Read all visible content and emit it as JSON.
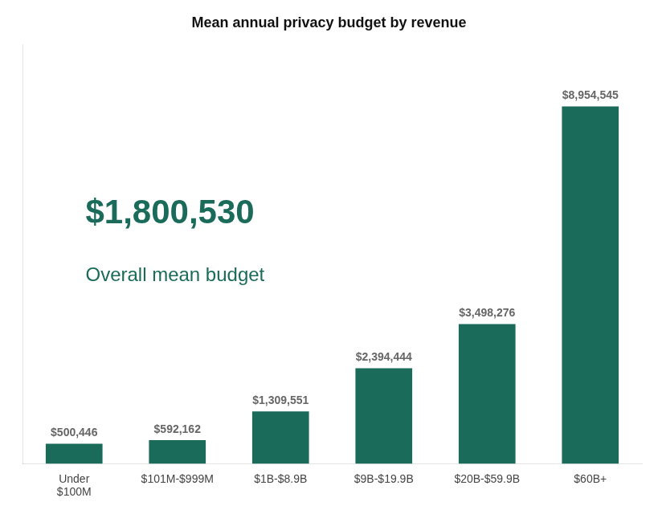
{
  "chart_data": {
    "type": "bar",
    "title": "Mean annual privacy budget by revenue",
    "categories": [
      "Under\n$100M",
      "$101M-$999M",
      "$1B-$8.9B",
      "$9B-$19.9B",
      "$20B-$59.9B",
      "$60B+"
    ],
    "values": [
      500446,
      592162,
      1309551,
      2394444,
      3498276,
      8954545
    ],
    "value_labels": [
      "$500,446",
      "$592,162",
      "$1,309,551",
      "$2,394,444",
      "$3,498,276",
      "$8,954,545"
    ],
    "data_labels": true,
    "color": "#1a6b5a",
    "ylim": [
      0,
      10500000
    ],
    "tick_labels": "x",
    "grid": false,
    "annotations": [
      {
        "text": "$1,800,530",
        "color": "#1a6b5a"
      },
      {
        "text": "Overall mean budget",
        "color": "#1a6b5a"
      }
    ]
  }
}
